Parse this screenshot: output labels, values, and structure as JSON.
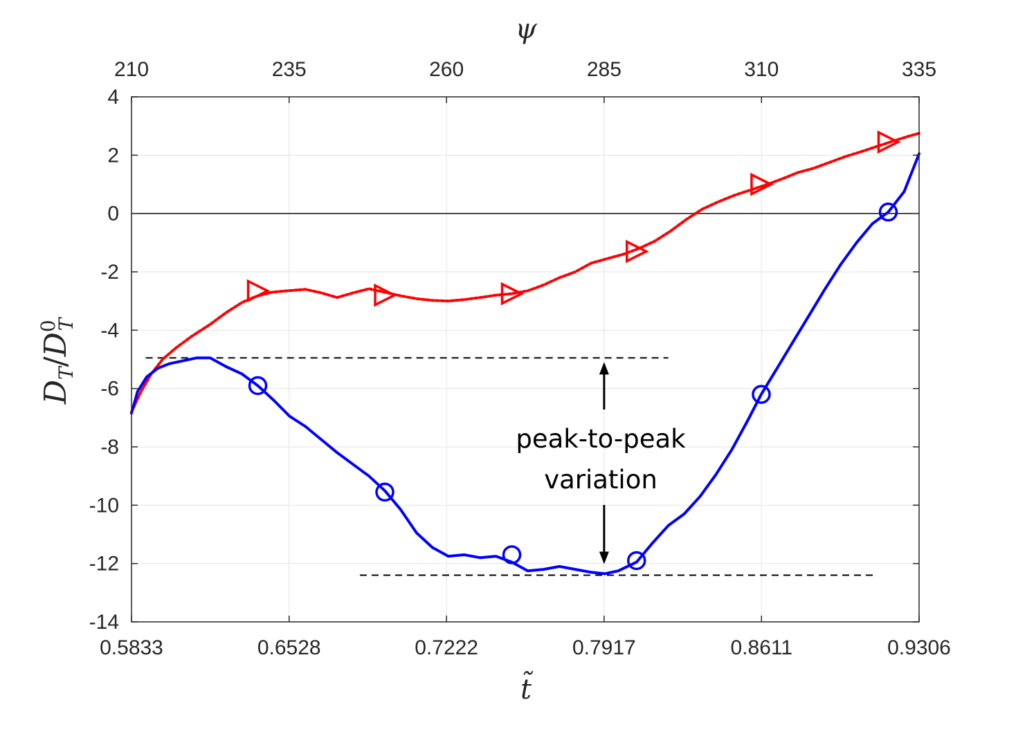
{
  "chart_data": {
    "type": "line",
    "title": "",
    "xlabel": "t̃",
    "ylabel": "DT/DT0",
    "ylabel_parts": {
      "main": "D",
      "sub": "T",
      "sep": "/",
      "main2": "D",
      "sub2": "T",
      "sup2": "0"
    },
    "top_xlabel": "ψ",
    "xlim": [
      0.5833,
      0.9306
    ],
    "ylim": [
      -14,
      4
    ],
    "xticks": [
      "0.5833",
      "0.6528",
      "0.7222",
      "0.7917",
      "0.8611",
      "0.9306"
    ],
    "xtick_values": [
      0.5833,
      0.6528,
      0.7222,
      0.7917,
      0.8611,
      0.9306
    ],
    "top_xticks": [
      "210",
      "235",
      "260",
      "285",
      "310",
      "335"
    ],
    "top_xlim": [
      210,
      335
    ],
    "yticks": [
      "4",
      "2",
      "0",
      "-2",
      "-4",
      "-6",
      "-8",
      "-10",
      "-12",
      "-14"
    ],
    "ytick_values": [
      4,
      2,
      0,
      -2,
      -4,
      -6,
      -8,
      -10,
      -12,
      -14
    ],
    "grid": true,
    "legend": "none",
    "zero_line": 0,
    "series": [
      {
        "color": "#ff0000",
        "style": "dotted",
        "marker": "triangle-right",
        "x": [
          0.5833,
          0.5875,
          0.592,
          0.597,
          0.603,
          0.61,
          0.618,
          0.625,
          0.632,
          0.638,
          0.645,
          0.652,
          0.66,
          0.667,
          0.674,
          0.681,
          0.688,
          0.695,
          0.702,
          0.709,
          0.716,
          0.723,
          0.73,
          0.737,
          0.744,
          0.751,
          0.758,
          0.765,
          0.772,
          0.779,
          0.786,
          0.793,
          0.8,
          0.807,
          0.814,
          0.821,
          0.828,
          0.835,
          0.842,
          0.849,
          0.856,
          0.863,
          0.87,
          0.877,
          0.884,
          0.891,
          0.898,
          0.905,
          0.912,
          0.919,
          0.926,
          0.9306
        ],
        "y": [
          -6.8,
          -6.1,
          -5.5,
          -5.0,
          -4.6,
          -4.2,
          -3.8,
          -3.4,
          -3.05,
          -2.85,
          -2.7,
          -2.65,
          -2.6,
          -2.72,
          -2.88,
          -2.72,
          -2.58,
          -2.7,
          -2.82,
          -2.92,
          -2.98,
          -3.0,
          -2.95,
          -2.88,
          -2.8,
          -2.75,
          -2.65,
          -2.45,
          -2.2,
          -2.0,
          -1.7,
          -1.55,
          -1.4,
          -1.2,
          -0.95,
          -0.6,
          -0.2,
          0.15,
          0.4,
          0.62,
          0.8,
          0.98,
          1.18,
          1.4,
          1.55,
          1.75,
          1.95,
          2.12,
          2.3,
          2.48,
          2.65,
          2.75
        ],
        "marker_x": [
          0.639,
          0.695,
          0.751,
          0.806,
          0.861,
          0.917
        ],
        "marker_y": [
          -2.65,
          -2.8,
          -2.75,
          -1.3,
          1.0,
          2.45
        ]
      },
      {
        "color": "#0000ff",
        "style": "solid",
        "marker": "circle",
        "x": [
          0.5833,
          0.586,
          0.59,
          0.595,
          0.6,
          0.606,
          0.612,
          0.618,
          0.625,
          0.632,
          0.639,
          0.646,
          0.653,
          0.66,
          0.667,
          0.674,
          0.681,
          0.688,
          0.695,
          0.702,
          0.709,
          0.716,
          0.723,
          0.73,
          0.737,
          0.744,
          0.751,
          0.758,
          0.765,
          0.772,
          0.779,
          0.786,
          0.792,
          0.798,
          0.806,
          0.813,
          0.82,
          0.827,
          0.834,
          0.841,
          0.848,
          0.855,
          0.861,
          0.868,
          0.875,
          0.882,
          0.889,
          0.896,
          0.903,
          0.91,
          0.917,
          0.924,
          0.9306
        ],
        "y": [
          -6.85,
          -6.1,
          -5.6,
          -5.3,
          -5.15,
          -5.05,
          -4.95,
          -4.95,
          -5.25,
          -5.5,
          -5.9,
          -6.4,
          -6.95,
          -7.3,
          -7.75,
          -8.2,
          -8.6,
          -9.0,
          -9.5,
          -10.15,
          -10.95,
          -11.45,
          -11.75,
          -11.7,
          -11.8,
          -11.75,
          -11.95,
          -12.25,
          -12.2,
          -12.1,
          -12.2,
          -12.3,
          -12.35,
          -12.25,
          -11.95,
          -11.3,
          -10.7,
          -10.3,
          -9.7,
          -8.95,
          -8.1,
          -7.1,
          -6.2,
          -5.3,
          -4.4,
          -3.5,
          -2.6,
          -1.75,
          -1.0,
          -0.35,
          0.05,
          0.75,
          2.05
        ],
        "marker_x": [
          0.639,
          0.695,
          0.751,
          0.806,
          0.861,
          0.917
        ],
        "marker_y": [
          -5.9,
          -9.55,
          -11.7,
          -11.9,
          -6.2,
          0.05
        ]
      }
    ],
    "annotations": {
      "text_line1": "peak-to-peak",
      "text_line2": "variation",
      "upper_level": -4.95,
      "lower_level": -12.4,
      "upper_line_x": [
        0.5896,
        0.82
      ],
      "lower_line_x": [
        0.684,
        0.912
      ],
      "arrow_x": 0.7917
    }
  }
}
